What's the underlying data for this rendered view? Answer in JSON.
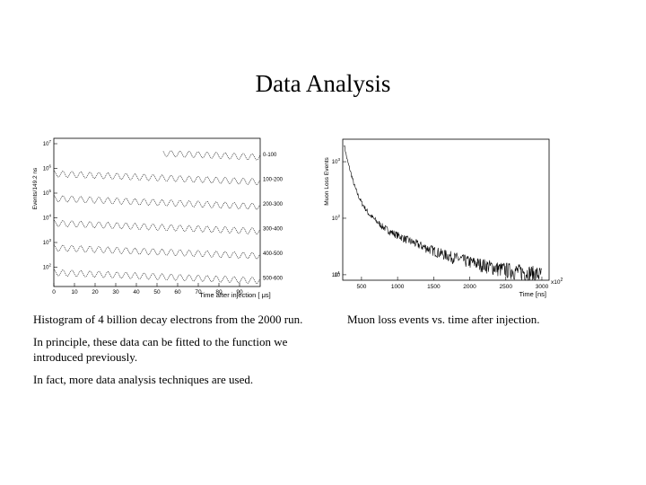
{
  "slide": {
    "title": "Data Analysis",
    "captions": {
      "left_histogram": "Histogram of 4 billion decay electrons from the 2000 run.",
      "left_principle": "In principle, these data can be fitted to the function we introduced previously.",
      "left_fact": "In fact, more data analysis techniques are used.",
      "right_loss": "Muon loss events vs. time after injection."
    }
  },
  "chart_data": [
    {
      "type": "line",
      "xlabel": "Time after injection [ μs]",
      "ylabel": "Events/149.2 ns",
      "xlim": [
        0,
        100
      ],
      "x_ticks": [
        "0",
        "10",
        "20",
        "30",
        "40",
        "50",
        "60",
        "70",
        "80",
        "90"
      ],
      "y_scale": "log",
      "y_ticks": [
        "10",
        "10",
        "10",
        "10",
        "10",
        "10"
      ],
      "y_tick_exponents": [
        "7",
        "6",
        "5",
        "4",
        "3",
        "2"
      ],
      "oscillation_period_us": 4.37,
      "series": [
        {
          "name": "0-100"
        },
        {
          "name": "100-200"
        },
        {
          "name": "200-300"
        },
        {
          "name": "300-400"
        },
        {
          "name": "400-500"
        },
        {
          "name": "500-600"
        }
      ],
      "grid": false,
      "legend": "labels at right end of each row"
    },
    {
      "type": "line",
      "xlabel": "Time [ns]",
      "ylabel": "Muon Loss Events",
      "x_multiplier": "x10",
      "x_multiplier_exponent": "2",
      "xlim": [
        240,
        3100
      ],
      "x_ticks": [
        "500",
        "1000",
        "1500",
        "2000",
        "2500",
        "3000"
      ],
      "x_tick_values": [
        500,
        1000,
        1500,
        2000,
        2500,
        3000
      ],
      "y_scale": "log",
      "ylim": [
        8,
        2500
      ],
      "y_ticks": [
        "10",
        "10",
        "10",
        "10"
      ],
      "y_tick_exponents": [
        "3",
        "2",
        "1",
        ""
      ],
      "y_tick_values": [
        1000,
        100,
        10,
        1
      ],
      "series": [
        {
          "x": [
            260,
            300,
            350,
            400,
            450,
            500,
            600,
            700,
            800,
            900,
            1000,
            1200,
            1400,
            1600,
            1800,
            2000,
            2200,
            2400,
            2600,
            2800,
            3000
          ],
          "values": [
            2000,
            1100,
            650,
            380,
            260,
            190,
            120,
            90,
            70,
            58,
            50,
            38,
            30,
            24,
            20,
            17,
            15,
            13,
            12,
            11,
            10
          ]
        }
      ],
      "grid": false
    }
  ]
}
